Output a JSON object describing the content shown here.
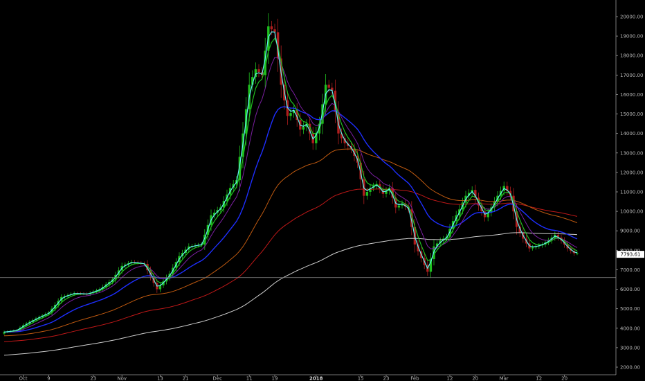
{
  "chart_data": {
    "type": "line",
    "title": "",
    "xlabel": "",
    "ylabel": "",
    "ylim": [
      1800,
      20500
    ],
    "y_ticks": [
      2000,
      3000,
      4000,
      5000,
      6000,
      7000,
      8000,
      9000,
      10000,
      11000,
      12000,
      13000,
      14000,
      15000,
      16000,
      17000,
      18000,
      19000,
      20000
    ],
    "y_tick_labels": [
      "2000.00",
      "3000.00",
      "4000.00",
      "5000.00",
      "6000.00",
      "7000.00",
      "8000.00",
      "9000.00",
      "10000.00",
      "11000.00",
      "12000.00",
      "13000.00",
      "14000.00",
      "15000.00",
      "16000.00",
      "17000.00",
      "18000.00",
      "19000.00",
      "20000.00"
    ],
    "x_ticks": [
      {
        "label": "Oct",
        "bar": 6,
        "bold": false
      },
      {
        "label": "9",
        "bar": 14,
        "bold": false
      },
      {
        "label": "23",
        "bar": 28,
        "bold": false
      },
      {
        "label": "Nov",
        "bar": 37,
        "bold": false
      },
      {
        "label": "13",
        "bar": 49,
        "bold": false
      },
      {
        "label": "21",
        "bar": 57,
        "bold": false
      },
      {
        "label": "Dec",
        "bar": 67,
        "bold": false
      },
      {
        "label": "11",
        "bar": 77,
        "bold": false
      },
      {
        "label": "19",
        "bar": 85,
        "bold": false
      },
      {
        "label": "2018",
        "bar": 98,
        "bold": true
      },
      {
        "label": "15",
        "bar": 112,
        "bold": false
      },
      {
        "label": "23",
        "bar": 120,
        "bold": false
      },
      {
        "label": "Feb",
        "bar": 129,
        "bold": false
      },
      {
        "label": "12",
        "bar": 140,
        "bold": false
      },
      {
        "label": "20",
        "bar": 148,
        "bold": false
      },
      {
        "label": "Mar",
        "bar": 157,
        "bold": false
      },
      {
        "label": "12",
        "bar": 168,
        "bold": false
      },
      {
        "label": "20",
        "bar": 176,
        "bold": false
      }
    ],
    "horizontal_line": 6600,
    "last_price_label": "7793.61",
    "colors": {
      "up": "#1fbf1f",
      "down": "#b01e1e",
      "ema_fast": "#5ff0f0",
      "ema_mid": "#20c020",
      "ema_slow": "#7a1fa0",
      "ema_blue": "#1e2fff",
      "ema_orange": "#c05a10",
      "ema_red": "#c01818",
      "ema_white": "#d0d0d0",
      "label_bg": "#ffffff",
      "grid": "#4a4a4a"
    },
    "anchors": [
      [
        0,
        3800
      ],
      [
        4,
        3900
      ],
      [
        6,
        4150
      ],
      [
        10,
        4500
      ],
      [
        14,
        4800
      ],
      [
        18,
        5600
      ],
      [
        22,
        5800
      ],
      [
        26,
        5750
      ],
      [
        30,
        6000
      ],
      [
        34,
        6500
      ],
      [
        37,
        7200
      ],
      [
        40,
        7400
      ],
      [
        44,
        7300
      ],
      [
        48,
        6000
      ],
      [
        52,
        6800
      ],
      [
        55,
        7700
      ],
      [
        58,
        8200
      ],
      [
        62,
        8300
      ],
      [
        65,
        9800
      ],
      [
        68,
        10200
      ],
      [
        71,
        11200
      ],
      [
        73,
        11600
      ],
      [
        75,
        14000
      ],
      [
        77,
        16500
      ],
      [
        79,
        17300
      ],
      [
        81,
        17000
      ],
      [
        83,
        19500
      ],
      [
        85,
        19200
      ],
      [
        87,
        16500
      ],
      [
        89,
        14900
      ],
      [
        91,
        15200
      ],
      [
        93,
        14200
      ],
      [
        95,
        14500
      ],
      [
        97,
        13500
      ],
      [
        99,
        14500
      ],
      [
        101,
        16500
      ],
      [
        103,
        16200
      ],
      [
        105,
        14000
      ],
      [
        107,
        13500
      ],
      [
        109,
        13200
      ],
      [
        111,
        12500
      ],
      [
        113,
        10800
      ],
      [
        115,
        11200
      ],
      [
        117,
        11400
      ],
      [
        119,
        10900
      ],
      [
        121,
        11200
      ],
      [
        123,
        10200
      ],
      [
        125,
        10400
      ],
      [
        127,
        10100
      ],
      [
        129,
        8300
      ],
      [
        131,
        7600
      ],
      [
        133,
        6900
      ],
      [
        135,
        8200
      ],
      [
        137,
        8500
      ],
      [
        139,
        8700
      ],
      [
        141,
        9500
      ],
      [
        143,
        10100
      ],
      [
        145,
        10800
      ],
      [
        147,
        11100
      ],
      [
        149,
        10300
      ],
      [
        151,
        9700
      ],
      [
        153,
        10200
      ],
      [
        155,
        10800
      ],
      [
        157,
        11300
      ],
      [
        159,
        10800
      ],
      [
        161,
        9200
      ],
      [
        163,
        8600
      ],
      [
        165,
        8100
      ],
      [
        167,
        8200
      ],
      [
        169,
        8300
      ],
      [
        171,
        8500
      ],
      [
        173,
        8800
      ],
      [
        175,
        8500
      ],
      [
        177,
        8100
      ],
      [
        179,
        7850
      ]
    ]
  }
}
